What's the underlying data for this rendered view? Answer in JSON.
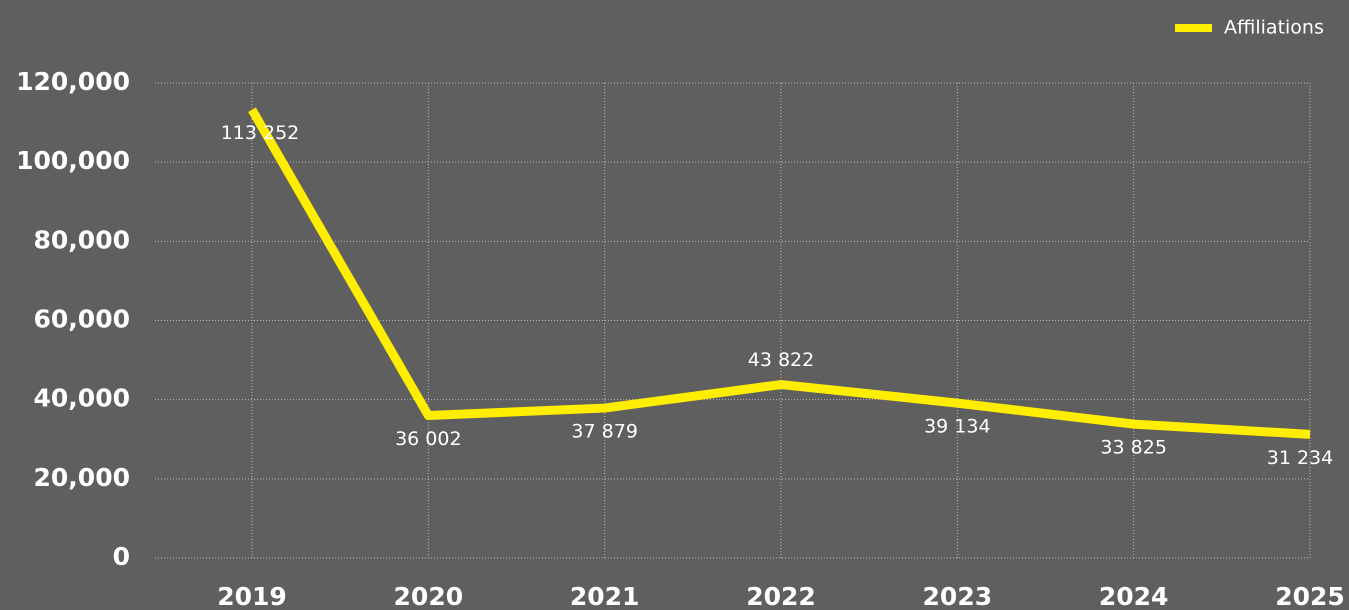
{
  "chart_data": {
    "type": "line",
    "categories": [
      "2019",
      "2020",
      "2021",
      "2022",
      "2023",
      "2024",
      "2025"
    ],
    "series": [
      {
        "name": "Affiliations",
        "color": "#ffee00",
        "values": [
          113252,
          36002,
          37879,
          43822,
          39134,
          33825,
          31234
        ],
        "value_labels": [
          "113 252",
          "36 002",
          "37 879",
          "43 822",
          "39 134",
          "33 825",
          "31 234"
        ]
      }
    ],
    "ylim": [
      0,
      120000
    ],
    "yticks": [
      0,
      {
        "value": 20000,
        "label": "20,000"
      },
      {
        "value": 40000,
        "label": "40,000"
      },
      {
        "value": 60000,
        "label": "60,000"
      },
      {
        "value": 80000,
        "label": "80,000"
      },
      {
        "value": 100000,
        "label": "100,000"
      },
      {
        "value": 120000,
        "label": "120,000"
      }
    ],
    "grid": true,
    "legend": "top-right"
  }
}
